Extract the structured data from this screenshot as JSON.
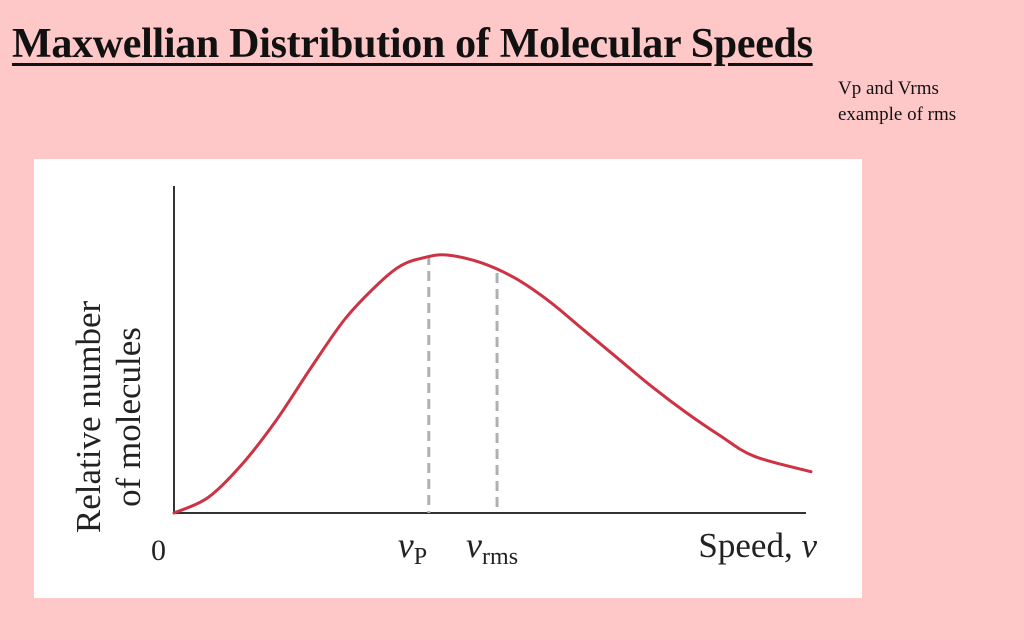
{
  "slide": {
    "title": "Maxwellian Distribution of Molecular Speeds",
    "notes": [
      "Vp and Vrms",
      "example of rms"
    ]
  },
  "colors": {
    "background": "#ffc8c8",
    "curve": "#cc3344",
    "markers": "#b0b0b0",
    "axes": "#333333"
  },
  "chart_data": {
    "type": "line",
    "title": "",
    "ylabel_lines": [
      "Relative number",
      "of molecules"
    ],
    "xlabel": {
      "text": "Speed, ",
      "var": "v"
    },
    "origin_label": "0",
    "xlim": [
      0,
      2.8
    ],
    "ylim": [
      0,
      1.0
    ],
    "grid": false,
    "series": [
      {
        "x": [
          0,
          0.15,
          0.3,
          0.45,
          0.6,
          0.75,
          0.9,
          1.0,
          1.1,
          1.2,
          1.35,
          1.5,
          1.65,
          1.8,
          1.95,
          2.1,
          2.25,
          2.4,
          2.55,
          2.8
        ],
        "y": [
          0,
          0.06,
          0.19,
          0.36,
          0.56,
          0.75,
          0.89,
          0.96,
          0.99,
          1.0,
          0.97,
          0.91,
          0.82,
          0.71,
          0.6,
          0.49,
          0.39,
          0.3,
          0.22,
          0.16
        ]
      }
    ],
    "markers": [
      {
        "x": 1.12,
        "y": 1.0,
        "var": "v",
        "sub": "P"
      },
      {
        "x": 1.42,
        "y": 0.93,
        "var": "v",
        "sub": "rms"
      }
    ]
  }
}
